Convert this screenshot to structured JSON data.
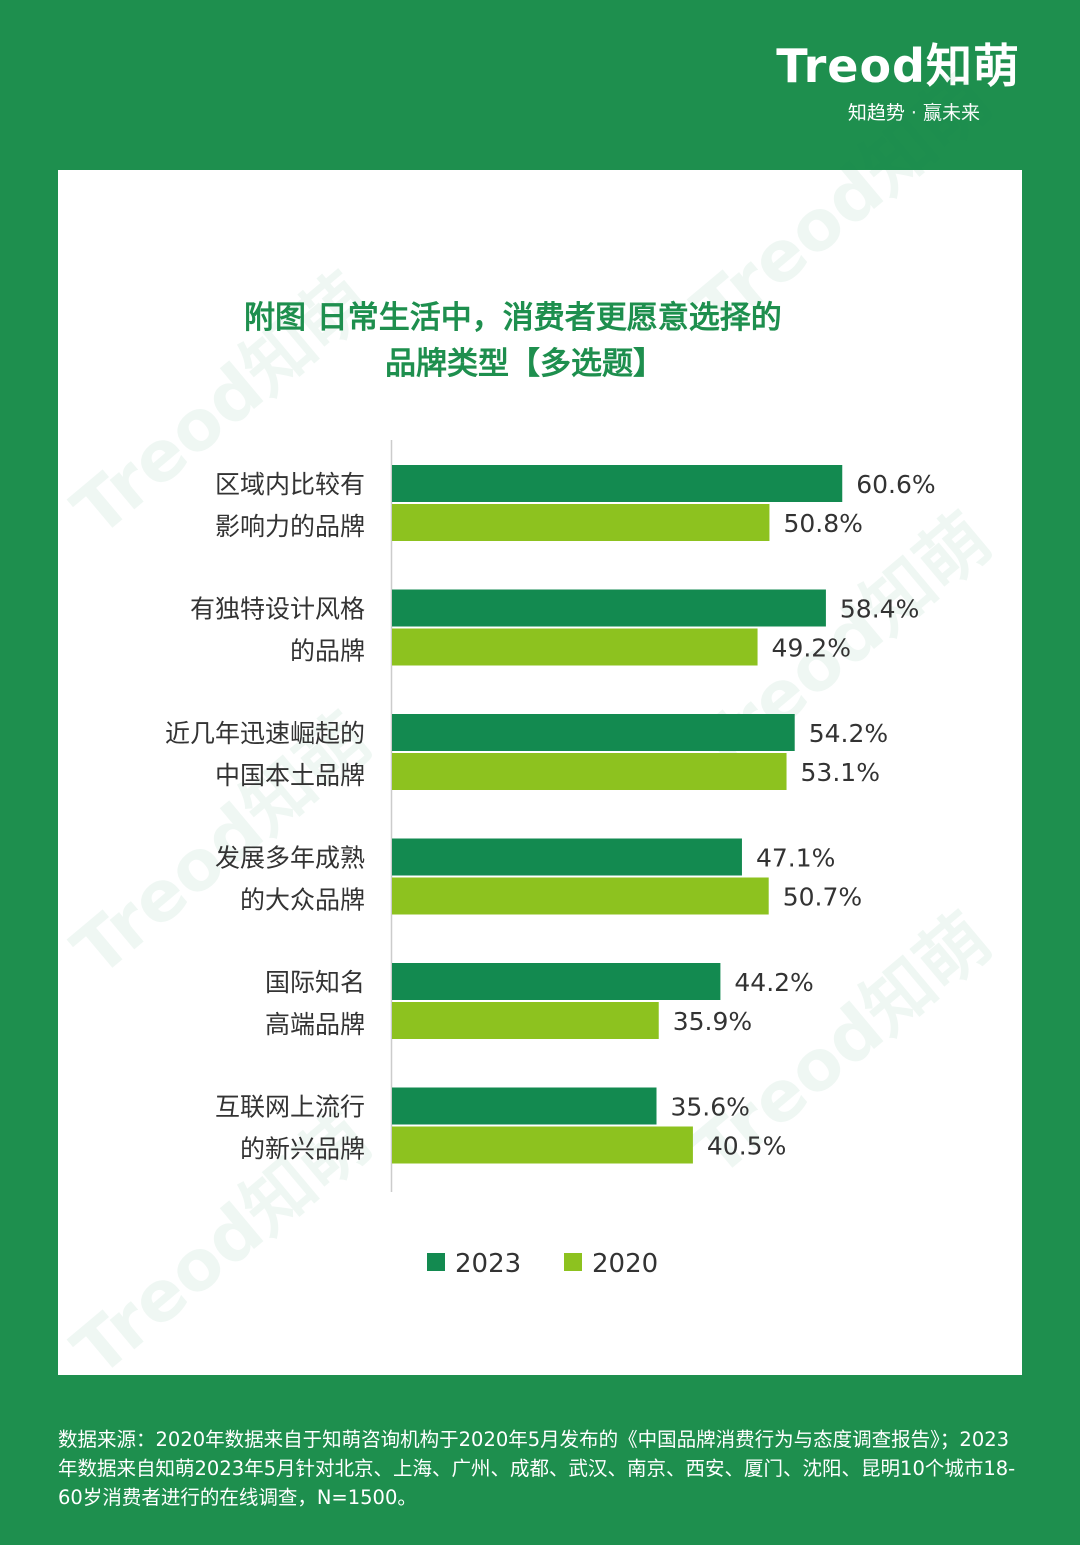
{
  "logo": {
    "brand": "Treod知萌",
    "tagline": "知趋势 · 赢未来"
  },
  "watermark_text": "Treod知萌",
  "title_lines": [
    "附图 日常生活中，消费者更愿意选择的",
    "品牌类型【多选题】"
  ],
  "colors": {
    "background": "#1e8f4e",
    "series_2023": "#138a50",
    "series_2020": "#8dc21f",
    "card": "#ffffff"
  },
  "chart_data": {
    "type": "bar",
    "orientation": "horizontal",
    "title": "附图 日常生活中，消费者更愿意选择的品牌类型【多选题】",
    "categories": [
      [
        "区域内比较有",
        "影响力的品牌"
      ],
      [
        "有独特设计风格",
        "的品牌"
      ],
      [
        "近几年迅速崛起的",
        "中国本土品牌"
      ],
      [
        "发展多年成熟",
        "的大众品牌"
      ],
      [
        "国际知名",
        "高端品牌"
      ],
      [
        "互联网上流行",
        "的新兴品牌"
      ]
    ],
    "series": [
      {
        "name": "2023",
        "values": [
          60.6,
          58.4,
          54.2,
          47.1,
          44.2,
          35.6
        ],
        "labels": [
          "60.6%",
          "58.4%",
          "54.2%",
          "47.1%",
          "44.2%",
          "35.6%"
        ]
      },
      {
        "name": "2020",
        "values": [
          50.8,
          49.2,
          53.1,
          50.7,
          35.9,
          40.5
        ],
        "labels": [
          "50.8%",
          "49.2%",
          "53.1%",
          "50.7%",
          "35.9%",
          "40.5%"
        ]
      }
    ],
    "unit": "%",
    "legend_position": "bottom",
    "grid": false
  },
  "source_note": "数据来源：2020年数据来自于知萌咨询机构于2020年5月发布的《中国品牌消费行为与态度调查报告》；2023年数据来自知萌2023年5月针对北京、上海、广州、成都、武汉、南京、西安、厦门、沈阳、昆明10个城市18-60岁消费者进行的在线调查，N=1500。"
}
